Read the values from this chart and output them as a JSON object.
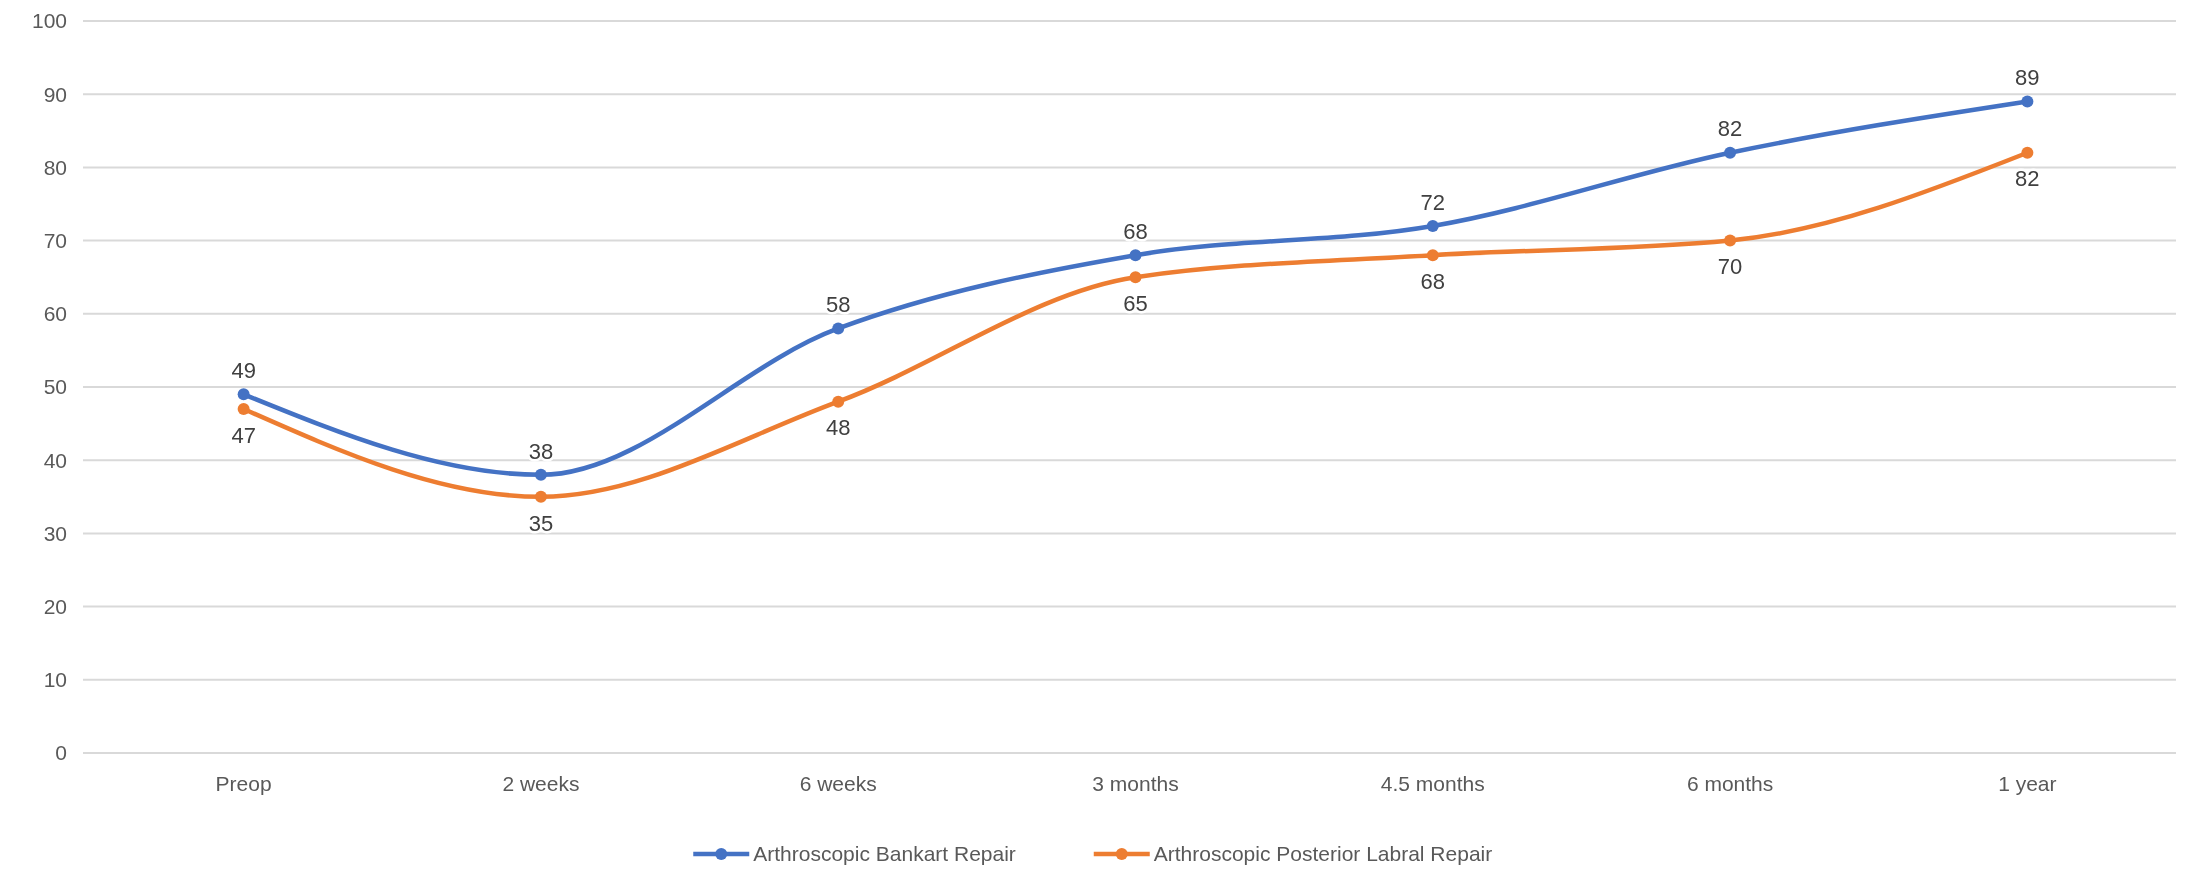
{
  "chart_data": {
    "type": "line",
    "categories": [
      "Preop",
      "2 weeks",
      "6 weeks",
      "3 months",
      "4.5 months",
      "6 months",
      "1 year"
    ],
    "series": [
      {
        "name": "Arthroscopic Bankart Repair",
        "color": "#4472c4",
        "values": [
          49,
          38,
          58,
          68,
          72,
          82,
          89
        ]
      },
      {
        "name": "Arthroscopic Posterior Labral Repair",
        "color": "#ed7d31",
        "values": [
          47,
          35,
          48,
          65,
          68,
          70,
          82
        ]
      }
    ],
    "ylim": [
      0,
      100
    ],
    "yticks": [
      0,
      10,
      20,
      30,
      40,
      50,
      60,
      70,
      80,
      90,
      100
    ],
    "grid": "y",
    "legend": "bottom",
    "marker": "circle",
    "data_labels": true
  }
}
